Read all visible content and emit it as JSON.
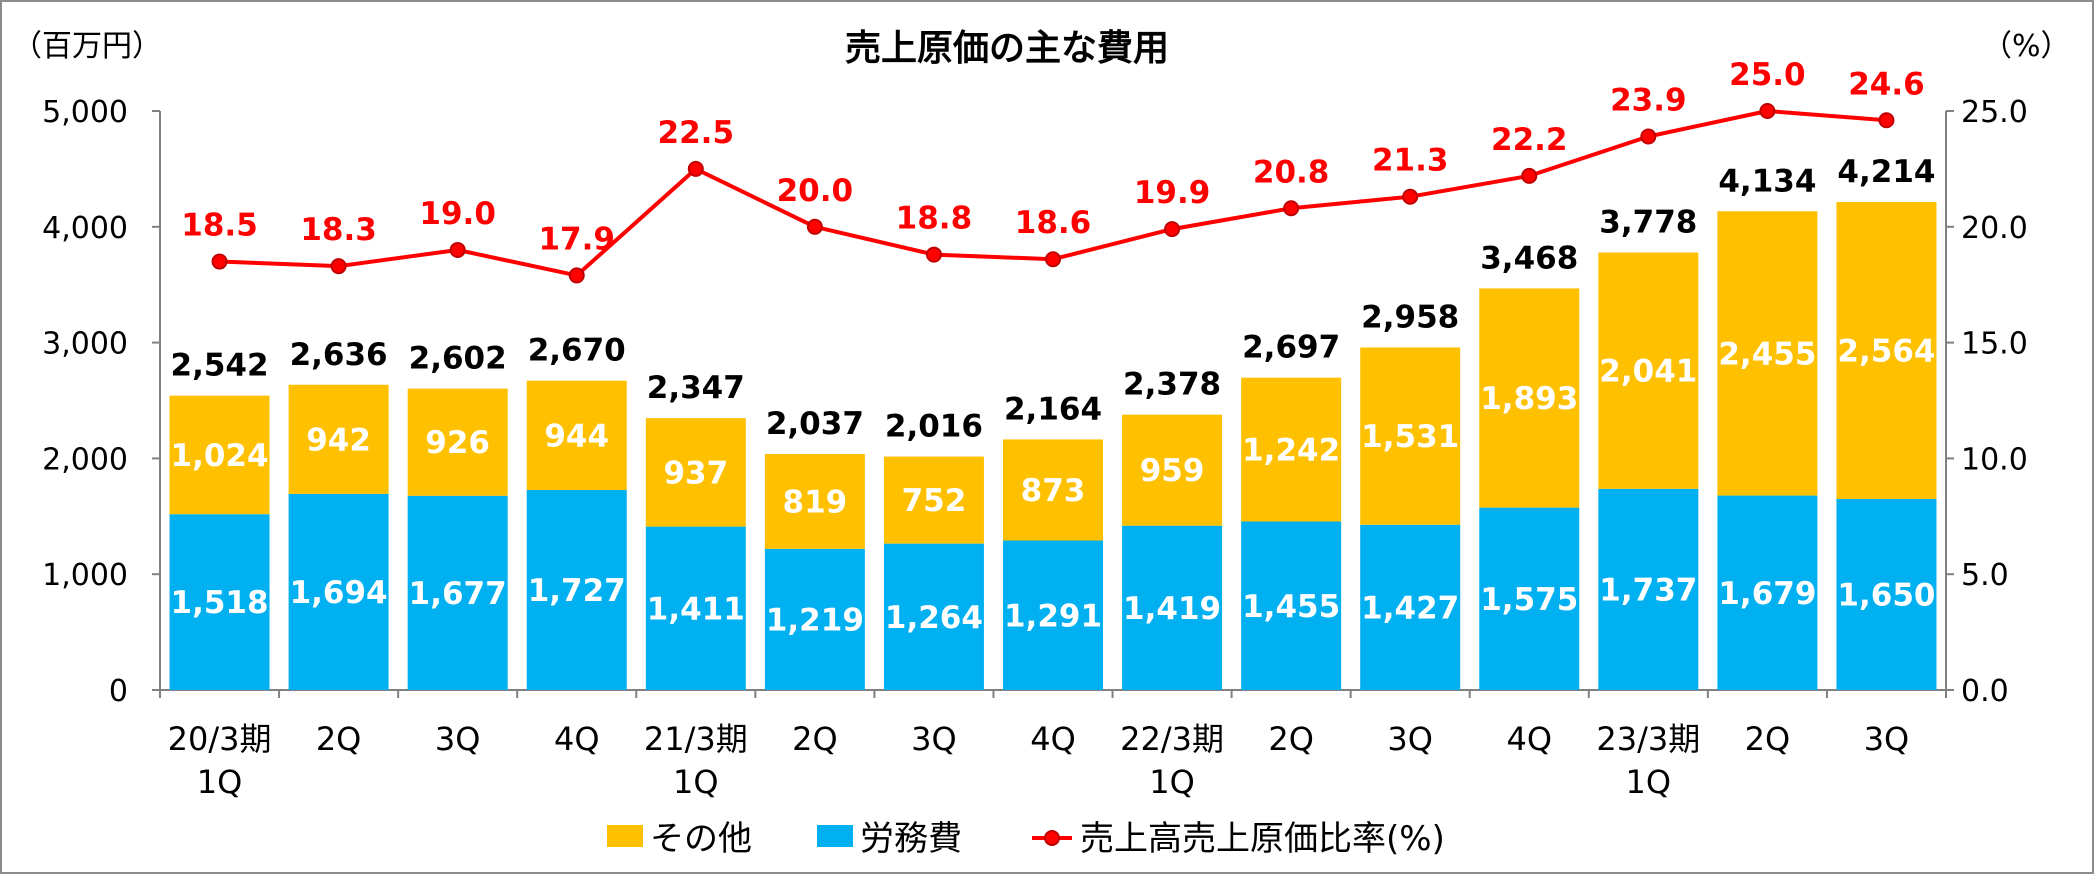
{
  "chart_data": {
    "type": "bar",
    "title": "売上原価の主な費用",
    "left_unit": "（百万円）",
    "right_unit": "（%）",
    "categories": [
      [
        "20/3期",
        "1Q"
      ],
      [
        "2Q"
      ],
      [
        "3Q"
      ],
      [
        "4Q"
      ],
      [
        "21/3期",
        "1Q"
      ],
      [
        "2Q"
      ],
      [
        "3Q"
      ],
      [
        "4Q"
      ],
      [
        "22/3期",
        "1Q"
      ],
      [
        "2Q"
      ],
      [
        "3Q"
      ],
      [
        "4Q"
      ],
      [
        "23/3期",
        "1Q"
      ],
      [
        "2Q"
      ],
      [
        "3Q"
      ]
    ],
    "y_ticks": [
      "0",
      "1,000",
      "2,000",
      "3,000",
      "4,000",
      "5,000"
    ],
    "y2_ticks": [
      "0.0",
      "5.0",
      "10.0",
      "15.0",
      "20.0",
      "25.0"
    ],
    "ylim": [
      0,
      5000
    ],
    "y2lim": [
      0,
      25
    ],
    "grid": false,
    "legend_position": "bottom",
    "series": [
      {
        "name": "労務費",
        "color": "#00b0f0",
        "values": [
          1518,
          1694,
          1677,
          1727,
          1411,
          1219,
          1264,
          1291,
          1419,
          1455,
          1427,
          1575,
          1737,
          1679,
          1650
        ],
        "labels": [
          "1,518",
          "1,694",
          "1,677",
          "1,727",
          "1,411",
          "1,219",
          "1,264",
          "1,291",
          "1,419",
          "1,455",
          "1,427",
          "1,575",
          "1,737",
          "1,679",
          "1,650"
        ]
      },
      {
        "name": "その他",
        "color": "#ffc000",
        "values": [
          1024,
          942,
          926,
          944,
          937,
          819,
          752,
          873,
          959,
          1242,
          1531,
          1893,
          2041,
          2455,
          2564
        ],
        "labels": [
          "1,024",
          "942",
          "926",
          "944",
          "937",
          "819",
          "752",
          "873",
          "959",
          "1,242",
          "1,531",
          "1,893",
          "2,041",
          "2,455",
          "2,564"
        ]
      }
    ],
    "totals": [
      2542,
      2636,
      2602,
      2670,
      2347,
      2037,
      2016,
      2164,
      2378,
      2697,
      2958,
      3468,
      3778,
      4134,
      4214
    ],
    "total_labels": [
      "2,542",
      "2,636",
      "2,602",
      "2,670",
      "2,347",
      "2,037",
      "2,016",
      "2,164",
      "2,378",
      "2,697",
      "2,958",
      "3,468",
      "3,778",
      "4,134",
      "4,214"
    ],
    "line": {
      "name": "売上高売上原価比率(%)",
      "color": "#ff0000",
      "values": [
        18.5,
        18.3,
        19.0,
        17.9,
        22.5,
        20.0,
        18.8,
        18.6,
        19.9,
        20.8,
        21.3,
        22.2,
        23.9,
        25.0,
        24.6
      ],
      "labels": [
        "18.5",
        "18.3",
        "19.0",
        "17.9",
        "22.5",
        "20.0",
        "18.8",
        "18.6",
        "19.9",
        "20.8",
        "21.3",
        "22.2",
        "23.9",
        "25.0",
        "24.6"
      ]
    }
  }
}
